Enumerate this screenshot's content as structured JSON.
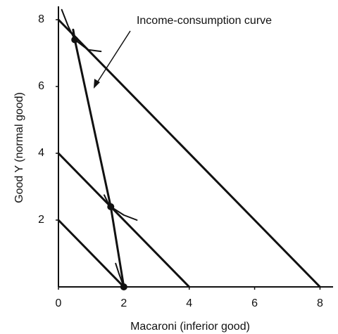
{
  "chart_data": {
    "type": "line",
    "xlabel": "Macaroni (inferior good)",
    "ylabel": "Good Y (normal good)",
    "annotation": "Income-consumption curve",
    "xlim": [
      0,
      8.4
    ],
    "ylim": [
      0,
      8.4
    ],
    "xticks": [
      0,
      2,
      4,
      6,
      8
    ],
    "yticks": [
      2,
      4,
      6,
      8
    ],
    "color": "#111111",
    "series": [
      {
        "x": [
          0,
          2
        ],
        "values": [
          2,
          0
        ],
        "color": "#111111"
      },
      {
        "x": [
          0,
          4
        ],
        "values": [
          4,
          0
        ],
        "color": "#111111"
      },
      {
        "x": [
          0,
          8
        ],
        "values": [
          8,
          0
        ],
        "color": "#111111"
      },
      {
        "x": [
          2,
          1.6,
          0.5,
          0.45
        ],
        "values": [
          0,
          2.4,
          7.4,
          7.7
        ],
        "color": "#111111"
      }
    ],
    "indifference_curves": [
      {
        "x": [
          0.1,
          0.3,
          0.5,
          0.9,
          1.3
        ],
        "values": [
          8.3,
          7.8,
          7.4,
          7.1,
          7.05
        ]
      },
      {
        "x": [
          1.4,
          1.5,
          1.6,
          2.0,
          2.4
        ],
        "values": [
          2.75,
          2.55,
          2.4,
          2.15,
          2.0
        ]
      },
      {
        "x": [
          1.75,
          1.85,
          2.0
        ],
        "values": [
          0.7,
          0.4,
          0
        ]
      }
    ],
    "points": {
      "x": [
        2,
        1.6,
        0.5
      ],
      "values": [
        0,
        2.4,
        7.4
      ]
    }
  }
}
